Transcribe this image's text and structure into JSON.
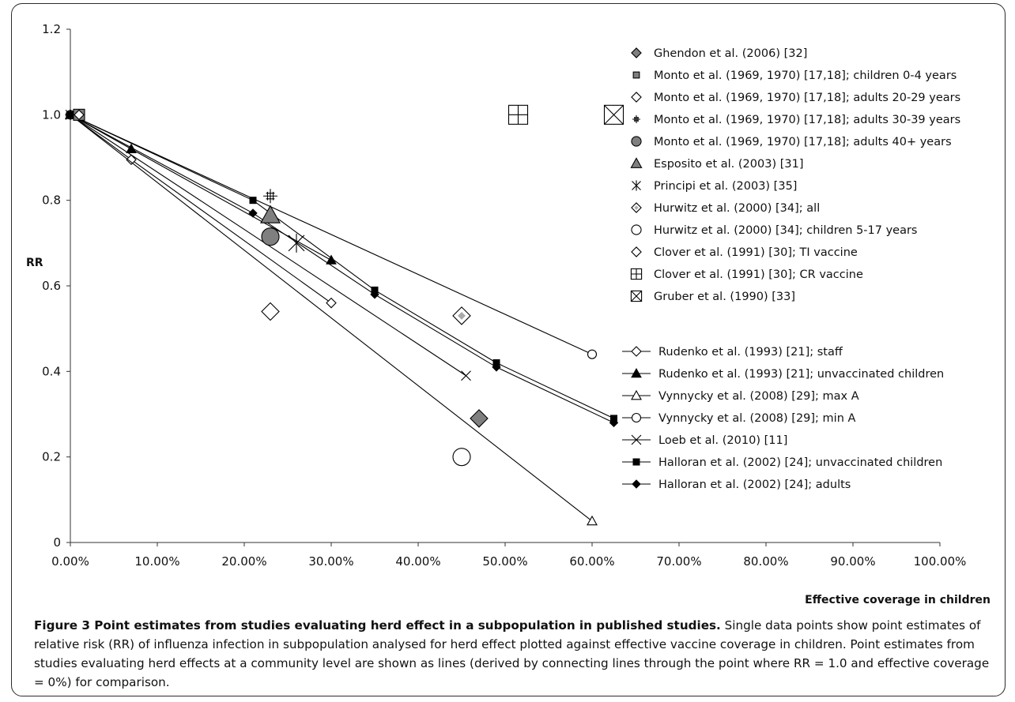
{
  "figure": {
    "caption_title": "Figure 3 Point estimates from studies evaluating herd effect in a subpopulation in published studies.",
    "caption_body": "Single data points show point estimates of relative risk (RR) of influenza infection in subpopulation analysed for herd effect plotted against effective vaccine coverage in children. Point estimates from studies evaluating herd effects at a community level are shown as lines (derived by connecting lines through the point where RR = 1.0 and effective coverage = 0%) for comparison."
  },
  "chart_data": {
    "type": "scatter",
    "ylabel": "RR",
    "xlabel": "Effective coverage in children",
    "xlim": [
      0,
      1.0
    ],
    "ylim": [
      0,
      1.2
    ],
    "x_ticks": [
      0,
      0.1,
      0.2,
      0.3,
      0.4,
      0.5,
      0.6,
      0.7,
      0.8,
      0.9,
      1.0
    ],
    "x_tick_labels": [
      "0.00%",
      "10.00%",
      "20.00%",
      "30.00%",
      "40.00%",
      "50.00%",
      "60.00%",
      "70.00%",
      "80.00%",
      "90.00%",
      "100.00%"
    ],
    "y_ticks": [
      0,
      0.2,
      0.4,
      0.6,
      0.8,
      1.0,
      1.2
    ],
    "y_tick_labels": [
      "0",
      "0.2",
      "0.4",
      "0.6",
      "0.8",
      "1.0",
      "1.2"
    ],
    "grid": false,
    "legend_position": "right",
    "colors": {
      "gray_fill": "#7f7f7f",
      "black": "#000000"
    },
    "points": [
      {
        "name": "Ghendon et al. (2006)  [32]",
        "marker": "diamond-gray",
        "x": 0.47,
        "y": 0.29
      },
      {
        "name": "Monto et al. (1969, 1970) [17,18]; children 0-4 years",
        "marker": "square-gray",
        "x": 0.01,
        "y": 1.0
      },
      {
        "name": "Monto et al. (1969, 1970) [17,18]; adults 20-29 years",
        "marker": "diamond-open",
        "x": 0.23,
        "y": 0.54
      },
      {
        "name": "Monto et al. (1969, 1970) [17,18]; adults 30-39 years",
        "marker": "hash-plus",
        "x": 0.23,
        "y": 0.81
      },
      {
        "name": "Monto et al. (1969, 1970) [17,18]; adults 40+ years",
        "marker": "circle-gray",
        "x": 0.23,
        "y": 0.715
      },
      {
        "name": "Esposito et al. (2003) [31]",
        "marker": "triangle-gray",
        "x": 0.23,
        "y": 0.765
      },
      {
        "name": "Principi et al. (2003) [35]",
        "marker": "asterisk",
        "x": 0.26,
        "y": 0.7
      },
      {
        "name": "Hurwitz et al. (2000) [34]; all",
        "marker": "diamond-dot",
        "x": 0.45,
        "y": 0.53
      },
      {
        "name": "Hurwitz et al. (2000) [34]; children 5-17 years",
        "marker": "circle-open",
        "x": 0.45,
        "y": 0.2
      },
      {
        "name": "Clover et al. (1991) [30]; TI vaccine",
        "marker": "diamond-open-small",
        "x": 0.01,
        "y": 1.0
      },
      {
        "name": "Clover et al. (1991) [30]; CR vaccine",
        "marker": "box-plus",
        "x": 0.515,
        "y": 1.0
      },
      {
        "name": "Gruber et al. (1990) [33]",
        "marker": "box-x",
        "x": 0.625,
        "y": 1.0
      }
    ],
    "series": [
      {
        "name": "Rudenko et al. (1993) [21]; staff",
        "marker": "diamond-open-small",
        "x": [
          0.0,
          0.07,
          0.3
        ],
        "y": [
          1.0,
          0.895,
          0.56
        ]
      },
      {
        "name": "Rudenko et al. (1993) [21]; unvaccinated children",
        "marker": "triangle-black",
        "x": [
          0.0,
          0.07,
          0.3
        ],
        "y": [
          1.0,
          0.92,
          0.66
        ]
      },
      {
        "name": "Vynnycky et al. (2008) [29]; max A",
        "marker": "triangle-open",
        "x": [
          0.0,
          0.6
        ],
        "y": [
          1.0,
          0.05
        ]
      },
      {
        "name": "Vynnycky et al. (2008) [29]; min A",
        "marker": "circle-open-small",
        "x": [
          0.0,
          0.6
        ],
        "y": [
          1.0,
          0.44
        ]
      },
      {
        "name": "Loeb et al. (2010) [11]",
        "marker": "x",
        "x": [
          0.0,
          0.455
        ],
        "y": [
          1.0,
          0.39
        ]
      },
      {
        "name": "Halloran et al. (2002) [24]; unvaccinated children",
        "marker": "square-small",
        "x": [
          0.0,
          0.21,
          0.35,
          0.49,
          0.625
        ],
        "y": [
          1.0,
          0.8,
          0.59,
          0.42,
          0.29
        ]
      },
      {
        "name": "Halloran et al. (2002) [24]; adults",
        "marker": "diamond-small",
        "x": [
          0.0,
          0.21,
          0.35,
          0.49,
          0.625
        ],
        "y": [
          1.0,
          0.77,
          0.58,
          0.41,
          0.28
        ]
      }
    ]
  }
}
